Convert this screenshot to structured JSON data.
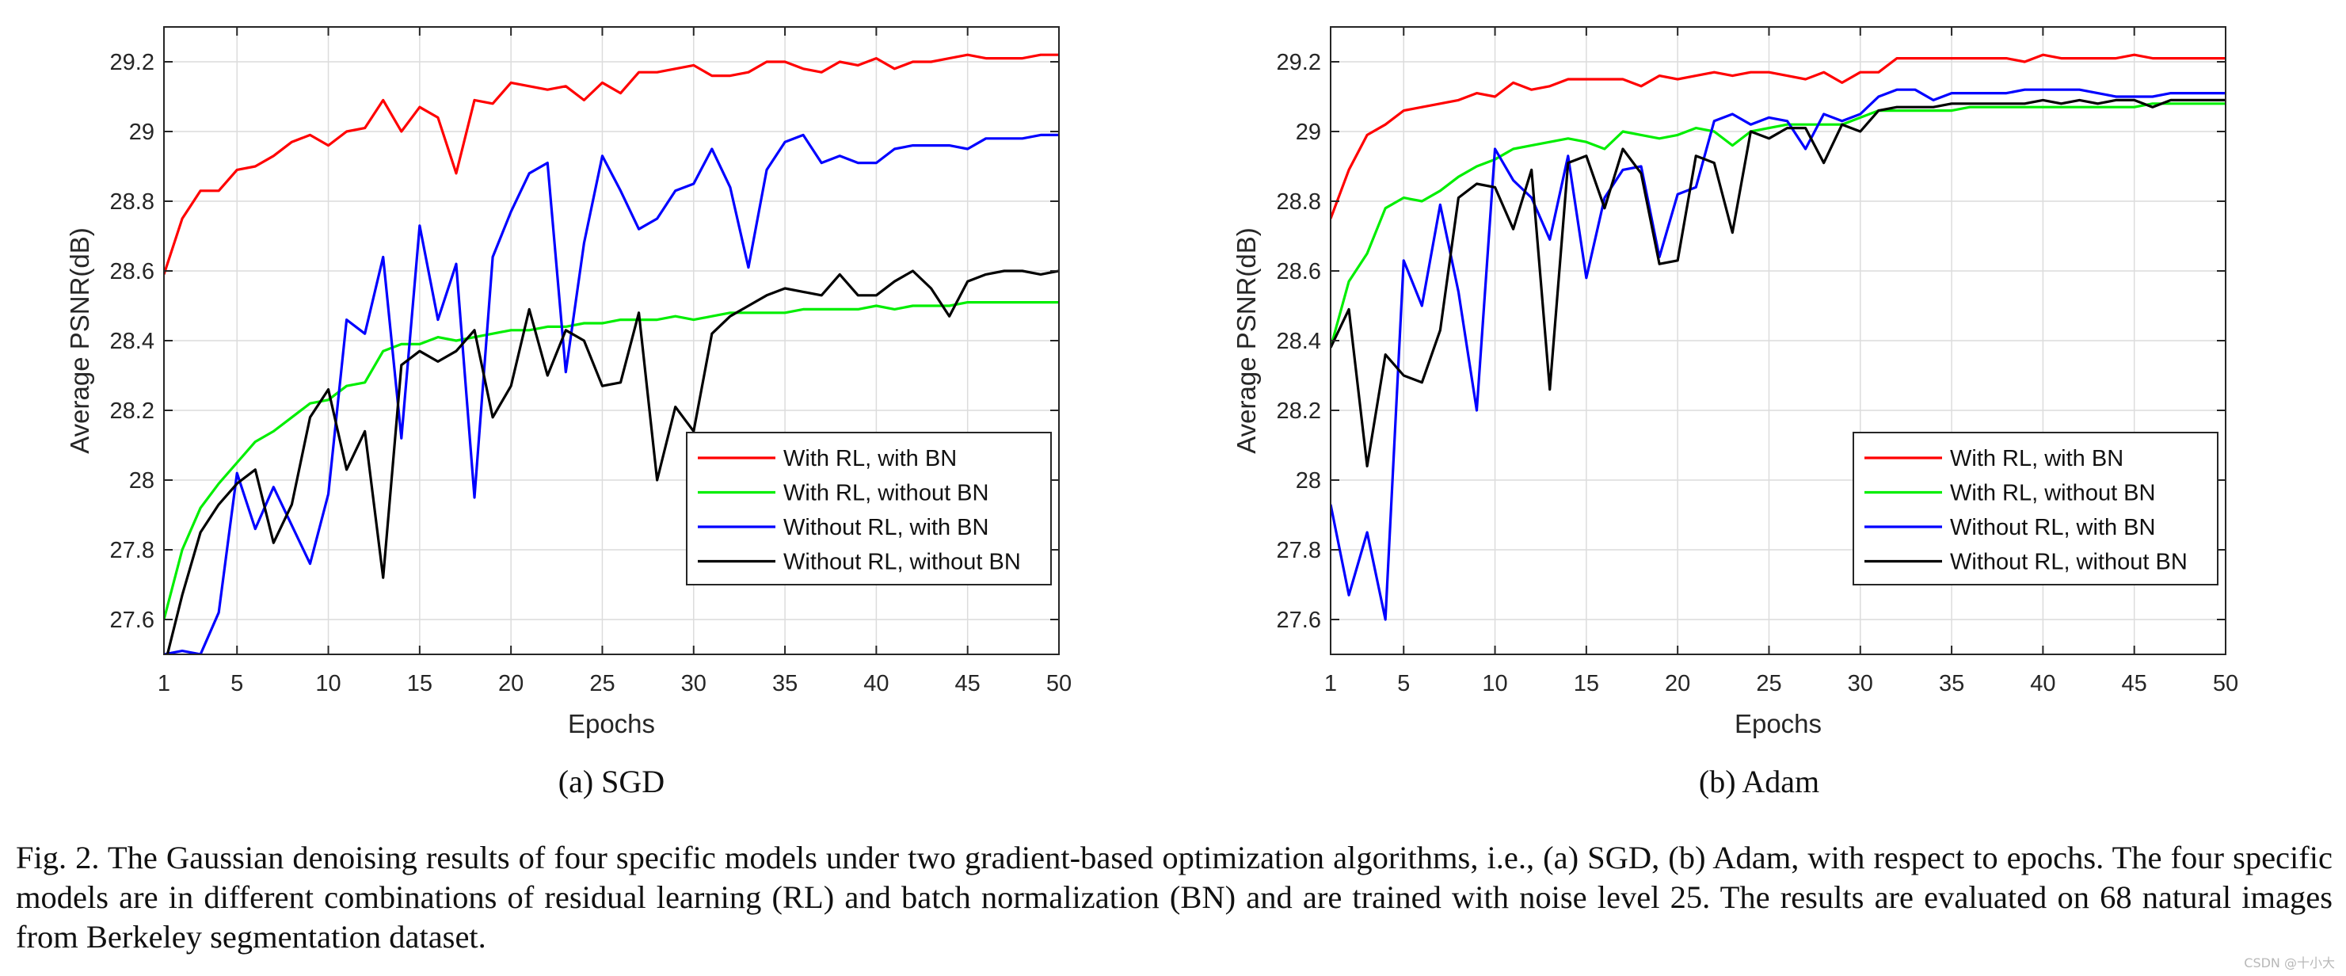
{
  "chart_data": [
    {
      "type": "line",
      "panel": "a",
      "xlabel": "Epochs",
      "ylabel": "Average PSNR(dB)",
      "xlim": [
        1,
        50
      ],
      "ylim": [
        27.5,
        29.3
      ],
      "xticks": [
        1,
        5,
        10,
        15,
        20,
        25,
        30,
        35,
        40,
        45,
        50
      ],
      "yticks": [
        27.6,
        27.8,
        28,
        28.2,
        28.4,
        28.6,
        28.8,
        29,
        29.2
      ],
      "ytick_labels": [
        "27.6",
        "27.8",
        "28",
        "28.2",
        "28.4",
        "28.6",
        "28.8",
        "29",
        "29.2"
      ],
      "grid": true,
      "legend_position": "bottom-right",
      "caption": "(a)  SGD",
      "series": [
        {
          "name": "With RL, with BN",
          "color": "#ff0000",
          "values": [
            28.59,
            28.75,
            28.83,
            28.83,
            28.89,
            28.9,
            28.93,
            28.97,
            28.99,
            28.96,
            29.0,
            29.01,
            29.09,
            29.0,
            29.07,
            29.04,
            28.88,
            29.09,
            29.08,
            29.14,
            29.13,
            29.12,
            29.13,
            29.09,
            29.14,
            29.11,
            29.17,
            29.17,
            29.18,
            29.19,
            29.16,
            29.16,
            29.17,
            29.2,
            29.2,
            29.18,
            29.17,
            29.2,
            29.19,
            29.21,
            29.18,
            29.2,
            29.2,
            29.21,
            29.22,
            29.21,
            29.21,
            29.21,
            29.22,
            29.22
          ]
        },
        {
          "name": "With RL, without BN",
          "color": "#00ee00",
          "values": [
            27.6,
            27.8,
            27.92,
            27.99,
            28.05,
            28.11,
            28.14,
            28.18,
            28.22,
            28.23,
            28.27,
            28.28,
            28.37,
            28.39,
            28.39,
            28.41,
            28.4,
            28.41,
            28.42,
            28.43,
            28.43,
            28.44,
            28.44,
            28.45,
            28.45,
            28.46,
            28.46,
            28.46,
            28.47,
            28.46,
            28.47,
            28.48,
            28.48,
            28.48,
            28.48,
            28.49,
            28.49,
            28.49,
            28.49,
            28.5,
            28.49,
            28.5,
            28.5,
            28.5,
            28.51,
            28.51,
            28.51,
            28.51,
            28.51,
            28.51
          ]
        },
        {
          "name": "Without RL, with BN",
          "color": "#0000ff",
          "values": [
            27.5,
            27.51,
            27.5,
            27.62,
            28.02,
            27.86,
            27.98,
            27.87,
            27.76,
            27.96,
            28.46,
            28.42,
            28.64,
            28.12,
            28.73,
            28.46,
            28.62,
            27.95,
            28.64,
            28.77,
            28.88,
            28.91,
            28.31,
            28.68,
            28.93,
            28.83,
            28.72,
            28.75,
            28.83,
            28.85,
            28.95,
            28.84,
            28.61,
            28.89,
            28.97,
            28.99,
            28.91,
            28.93,
            28.91,
            28.91,
            28.95,
            28.96,
            28.96,
            28.96,
            28.95,
            28.98,
            28.98,
            28.98,
            28.99,
            28.99
          ]
        },
        {
          "name": "Without RL, without BN",
          "color": "#000000",
          "values": [
            27.46,
            27.67,
            27.85,
            27.93,
            27.99,
            28.03,
            27.82,
            27.93,
            28.18,
            28.26,
            28.03,
            28.14,
            27.72,
            28.33,
            28.37,
            28.34,
            28.37,
            28.43,
            28.18,
            28.27,
            28.49,
            28.3,
            28.43,
            28.4,
            28.27,
            28.28,
            28.48,
            28.0,
            28.21,
            28.14,
            28.42,
            28.47,
            28.5,
            28.53,
            28.55,
            28.54,
            28.53,
            28.59,
            28.53,
            28.53,
            28.57,
            28.6,
            28.55,
            28.47,
            28.57,
            28.59,
            28.6,
            28.6,
            28.59,
            28.6
          ]
        }
      ]
    },
    {
      "type": "line",
      "panel": "b",
      "xlabel": "Epochs",
      "ylabel": "Average PSNR(dB)",
      "xlim": [
        1,
        50
      ],
      "ylim": [
        27.5,
        29.3
      ],
      "xticks": [
        1,
        5,
        10,
        15,
        20,
        25,
        30,
        35,
        40,
        45,
        50
      ],
      "yticks": [
        27.6,
        27.8,
        28,
        28.2,
        28.4,
        28.6,
        28.8,
        29,
        29.2
      ],
      "ytick_labels": [
        "27.6",
        "27.8",
        "28",
        "28.2",
        "28.4",
        "28.6",
        "28.8",
        "29",
        "29.2"
      ],
      "grid": true,
      "legend_position": "bottom-right",
      "caption": "(b)  Adam",
      "series": [
        {
          "name": "With RL, with BN",
          "color": "#ff0000",
          "values": [
            28.75,
            28.89,
            28.99,
            29.02,
            29.06,
            29.07,
            29.08,
            29.09,
            29.11,
            29.1,
            29.14,
            29.12,
            29.13,
            29.15,
            29.15,
            29.15,
            29.15,
            29.13,
            29.16,
            29.15,
            29.16,
            29.17,
            29.16,
            29.17,
            29.17,
            29.16,
            29.15,
            29.17,
            29.14,
            29.17,
            29.17,
            29.21,
            29.21,
            29.21,
            29.21,
            29.21,
            29.21,
            29.21,
            29.2,
            29.22,
            29.21,
            29.21,
            29.21,
            29.21,
            29.22,
            29.21,
            29.21,
            29.21,
            29.21,
            29.21
          ]
        },
        {
          "name": "With RL, without BN",
          "color": "#00ee00",
          "values": [
            28.38,
            28.57,
            28.65,
            28.78,
            28.81,
            28.8,
            28.83,
            28.87,
            28.9,
            28.92,
            28.95,
            28.96,
            28.97,
            28.98,
            28.97,
            28.95,
            29.0,
            28.99,
            28.98,
            28.99,
            29.01,
            29.0,
            28.96,
            29.0,
            29.01,
            29.02,
            29.02,
            29.02,
            29.02,
            29.04,
            29.06,
            29.06,
            29.06,
            29.06,
            29.06,
            29.07,
            29.07,
            29.07,
            29.07,
            29.07,
            29.07,
            29.07,
            29.07,
            29.07,
            29.07,
            29.08,
            29.08,
            29.08,
            29.08,
            29.08
          ]
        },
        {
          "name": "Without RL, with BN",
          "color": "#0000ff",
          "values": [
            27.93,
            27.67,
            27.85,
            27.6,
            28.63,
            28.5,
            28.79,
            28.54,
            28.2,
            28.95,
            28.86,
            28.81,
            28.69,
            28.93,
            28.58,
            28.81,
            28.89,
            28.9,
            28.64,
            28.82,
            28.84,
            29.03,
            29.05,
            29.02,
            29.04,
            29.03,
            28.95,
            29.05,
            29.03,
            29.05,
            29.1,
            29.12,
            29.12,
            29.09,
            29.11,
            29.11,
            29.11,
            29.11,
            29.12,
            29.12,
            29.12,
            29.12,
            29.11,
            29.1,
            29.1,
            29.1,
            29.11,
            29.11,
            29.11,
            29.11
          ]
        },
        {
          "name": "Without RL, without BN",
          "color": "#000000",
          "values": [
            28.38,
            28.49,
            28.04,
            28.36,
            28.3,
            28.28,
            28.43,
            28.81,
            28.85,
            28.84,
            28.72,
            28.89,
            28.26,
            28.91,
            28.93,
            28.78,
            28.95,
            28.88,
            28.62,
            28.63,
            28.93,
            28.91,
            28.71,
            29.0,
            28.98,
            29.01,
            29.01,
            28.91,
            29.02,
            29.0,
            29.06,
            29.07,
            29.07,
            29.07,
            29.08,
            29.08,
            29.08,
            29.08,
            29.08,
            29.09,
            29.08,
            29.09,
            29.08,
            29.09,
            29.09,
            29.07,
            29.09,
            29.09,
            29.09,
            29.09
          ]
        }
      ]
    }
  ],
  "figure": {
    "caption": "Fig. 2.  The Gaussian denoising results of four specific models under two gradient-based optimization algorithms, i.e., (a) SGD, (b) Adam, with respect to epochs. The four specific models are in different combinations of residual learning (RL) and batch normalization (BN) and are trained with noise level 25. The results are evaluated on 68 natural images from Berkeley segmentation dataset.",
    "watermark": "CSDN @十小大"
  }
}
